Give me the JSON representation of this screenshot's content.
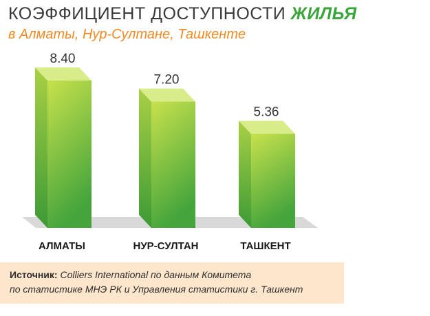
{
  "header": {
    "title_main": "КОЭФФИЦИЕНТ ДОСТУПНОСТИ",
    "title_highlight": "ЖИЛЬЯ",
    "subtitle": "в Алматы, Нур-Султане, Ташкенте"
  },
  "chart_data": {
    "type": "bar",
    "categories": [
      "АЛМАТЫ",
      "НУР-СУЛТАН",
      "ТАШКЕНТ"
    ],
    "values": [
      8.4,
      7.2,
      5.36
    ],
    "value_labels": [
      "8.40",
      "7.20",
      "5.36"
    ],
    "title": "КОЭФФИЦИЕНТ ДОСТУПНОСТИ ЖИЛЬЯ",
    "subtitle": "в Алматы, Нур-Султане, Ташкенте",
    "xlabel": "",
    "ylabel": "",
    "ylim": [
      0,
      8.4
    ],
    "grid": false,
    "colors": {
      "bar_top": "#c5e04a",
      "bar_bottom": "#4aa83e",
      "bar_side": "#8cc63f",
      "bar_cap": "#d8ec8a",
      "floor": "#d9d9d9"
    }
  },
  "source": {
    "label": "Источник:",
    "line1": "Colliers International по данным Комитета",
    "line2": "по статистике МНЭ РК и Управления статистики г. Ташкент"
  }
}
